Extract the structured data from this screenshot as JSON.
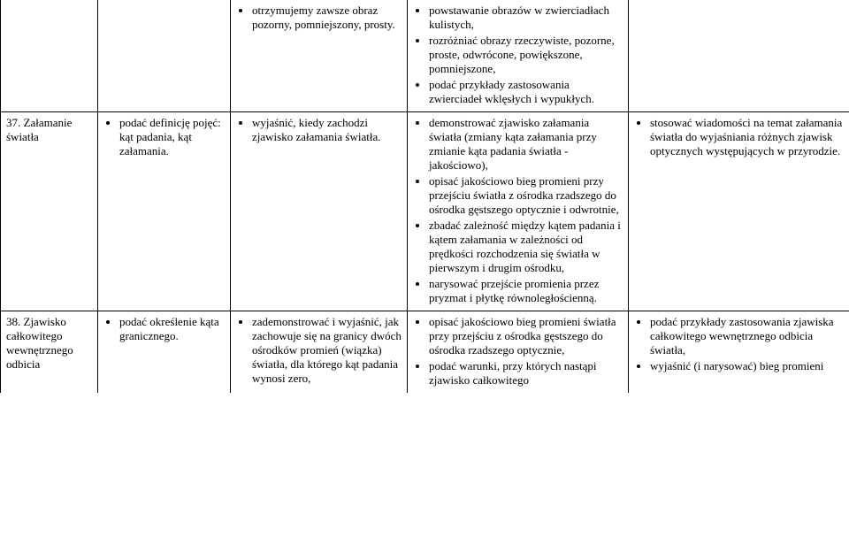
{
  "rows": [
    {
      "col1": "",
      "col2": [],
      "col3": [
        "otrzymujemy zawsze obraz pozorny, pomniejszony, prosty."
      ],
      "col4": [
        "powstawanie obrazów w zwierciadłach kulistych,",
        "rozróżniać obrazy rzeczywiste, pozorne, proste, odwrócone, powiększone, pomniejszone,",
        "podać przykłady zastosowania zwierciadeł wklęsłych i wypukłych."
      ],
      "col5": [],
      "openTop": true
    },
    {
      "col1": "37. Załamanie światła",
      "col2": [
        "podać definicję pojęć: kąt padania, kąt załamania."
      ],
      "col3": [
        "wyjaśnić, kiedy zachodzi zjawisko załamania światła."
      ],
      "col4": [
        "demonstrować zjawisko załamania światła (zmiany kąta załamania przy zmianie kąta padania światła - jakościowo),",
        "opisać jakościowo bieg promieni przy przejściu światła z ośrodka rzadszego do ośrodka gęstszego optycznie i odwrotnie,",
        "zbadać zależność między kątem padania i kątem załamania w zależności od prędkości rozchodzenia się światła w pierwszym i drugim ośrodku,",
        "narysować przejście promienia przez pryzmat i płytkę równoległościenną."
      ],
      "col5": [
        "stosować wiadomości na temat załamania światła do wyjaśniania różnych zjawisk optycznych występujących w przyrodzie."
      ]
    },
    {
      "col1": "38. Zjawisko całkowitego wewnętrznego odbicia",
      "col2": [
        "podać określenie kąta granicznego."
      ],
      "col3": [
        "zademonstrować i wyjaśnić, jak zachowuje się na granicy dwóch ośrodków promień (wiązka) światła, dla którego kąt padania wynosi  zero,"
      ],
      "col4": [
        "opisać jakościowo bieg promieni światła przy przejściu z ośrodka gęstszego do ośrodka rzadszego optycznie,",
        "podać warunki, przy których nastąpi zjawisko całkowitego"
      ],
      "col5": [
        "podać przykłady zastosowania zjawiska całkowitego wewnętrznego odbicia światła,",
        "wyjaśnić (i narysować) bieg promieni"
      ],
      "openBottom": true
    }
  ]
}
